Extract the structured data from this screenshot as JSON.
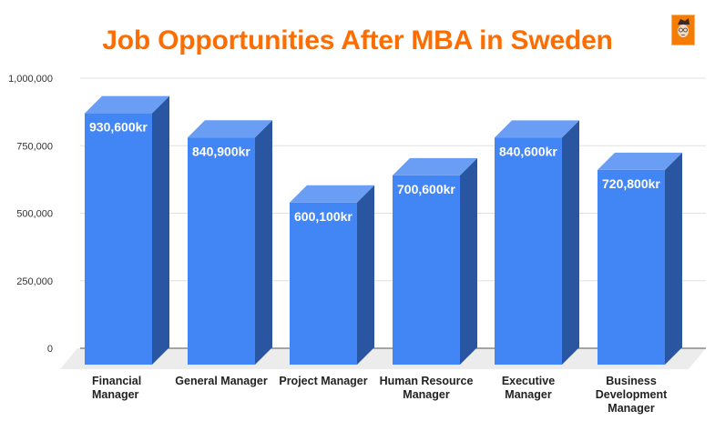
{
  "title": "Job Opportunities After MBA in Sweden",
  "logo": {
    "icon": "cartoon-face-logo-icon",
    "color": "#f57c00"
  },
  "colors": {
    "title": "#ff6d00",
    "bar_front": "#4285f4",
    "bar_top": "#6a9ef5",
    "bar_side": "#2a55a0",
    "floor": "#ececec",
    "grid": "#e0e0e0"
  },
  "chart_data": {
    "type": "bar",
    "title": "Job Opportunities After MBA in Sweden",
    "xlabel": "",
    "ylabel": "",
    "categories": [
      "Financial Manager",
      "General Manager",
      "Project Manager",
      "Human Resource Manager",
      "Executive Manager",
      "Business Development Manager"
    ],
    "values": [
      930600,
      840900,
      600100,
      700600,
      840600,
      720800
    ],
    "value_labels": [
      "930,600kr",
      "840,900kr",
      "600,100kr",
      "700,600kr",
      "840,600kr",
      "720,800kr"
    ],
    "yticks": [
      "0",
      "250,000",
      "500,000",
      "750,000",
      "1,000,000"
    ],
    "ylim": [
      0,
      1000000
    ],
    "grid": true,
    "legend": "none",
    "style": "3d"
  },
  "x_labels": [
    [
      "Financial",
      "Manager"
    ],
    [
      "General Manager"
    ],
    [
      "Project Manager"
    ],
    [
      "Human Resource",
      "Manager"
    ],
    [
      "Executive",
      "Manager"
    ],
    [
      "Business",
      "Development",
      "Manager"
    ]
  ]
}
